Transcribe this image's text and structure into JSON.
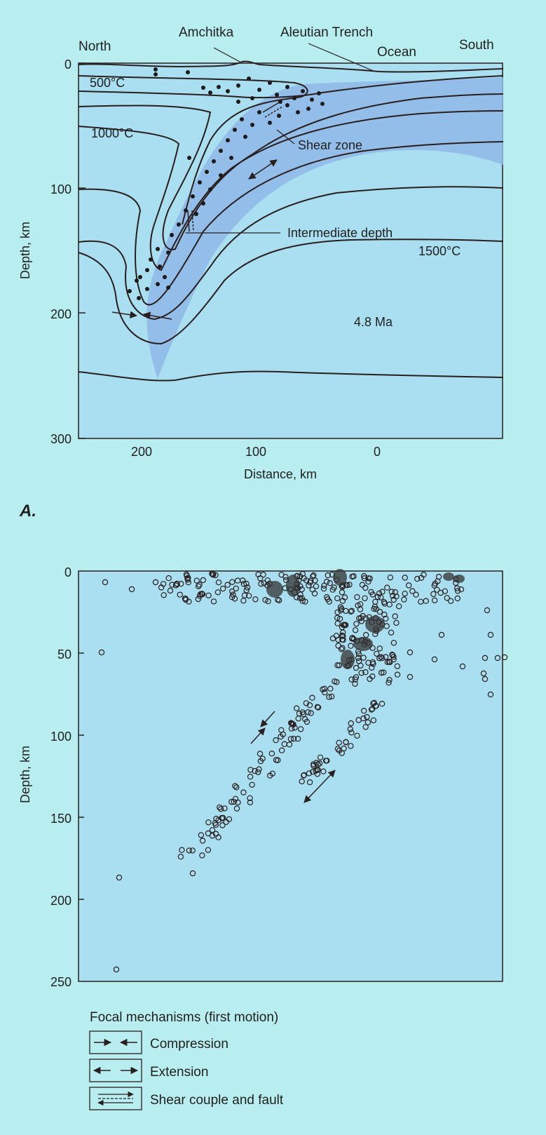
{
  "panel_a": {
    "label": "A.",
    "direction_left": "North",
    "direction_right": "South",
    "place_amchitka": "Amchitka",
    "place_trench": "Aleutian Trench",
    "place_ocean": "Ocean",
    "isotherm_500": "500°C",
    "isotherm_1000": "1000°C",
    "isotherm_1500": "1500°C",
    "label_shear_zone": "Shear zone",
    "label_intermediate": "Intermediate depth",
    "label_age": "4.8 Ma",
    "y_axis_label": "Depth, km",
    "x_axis_label": "Distance, km",
    "y_ticks": [
      "0",
      "100",
      "200",
      "300"
    ],
    "x_ticks": [
      "200",
      "100",
      "0"
    ]
  },
  "panel_b": {
    "y_axis_label": "Depth, km",
    "y_ticks": [
      "0",
      "50",
      "100",
      "150",
      "200",
      "250"
    ]
  },
  "legend": {
    "title": "Focal mechanisms (first motion)",
    "items": [
      {
        "icon": "compression-arrows-icon",
        "label": "Compression"
      },
      {
        "icon": "extension-arrows-icon",
        "label": "Extension"
      },
      {
        "icon": "shear-couple-icon",
        "label": "Shear couple and fault"
      }
    ]
  },
  "colors": {
    "page_background": "#b9eef0",
    "plot_background": "#a9dff0",
    "slab_band": "#8fb8e8",
    "line": "#2a1f1f"
  }
}
